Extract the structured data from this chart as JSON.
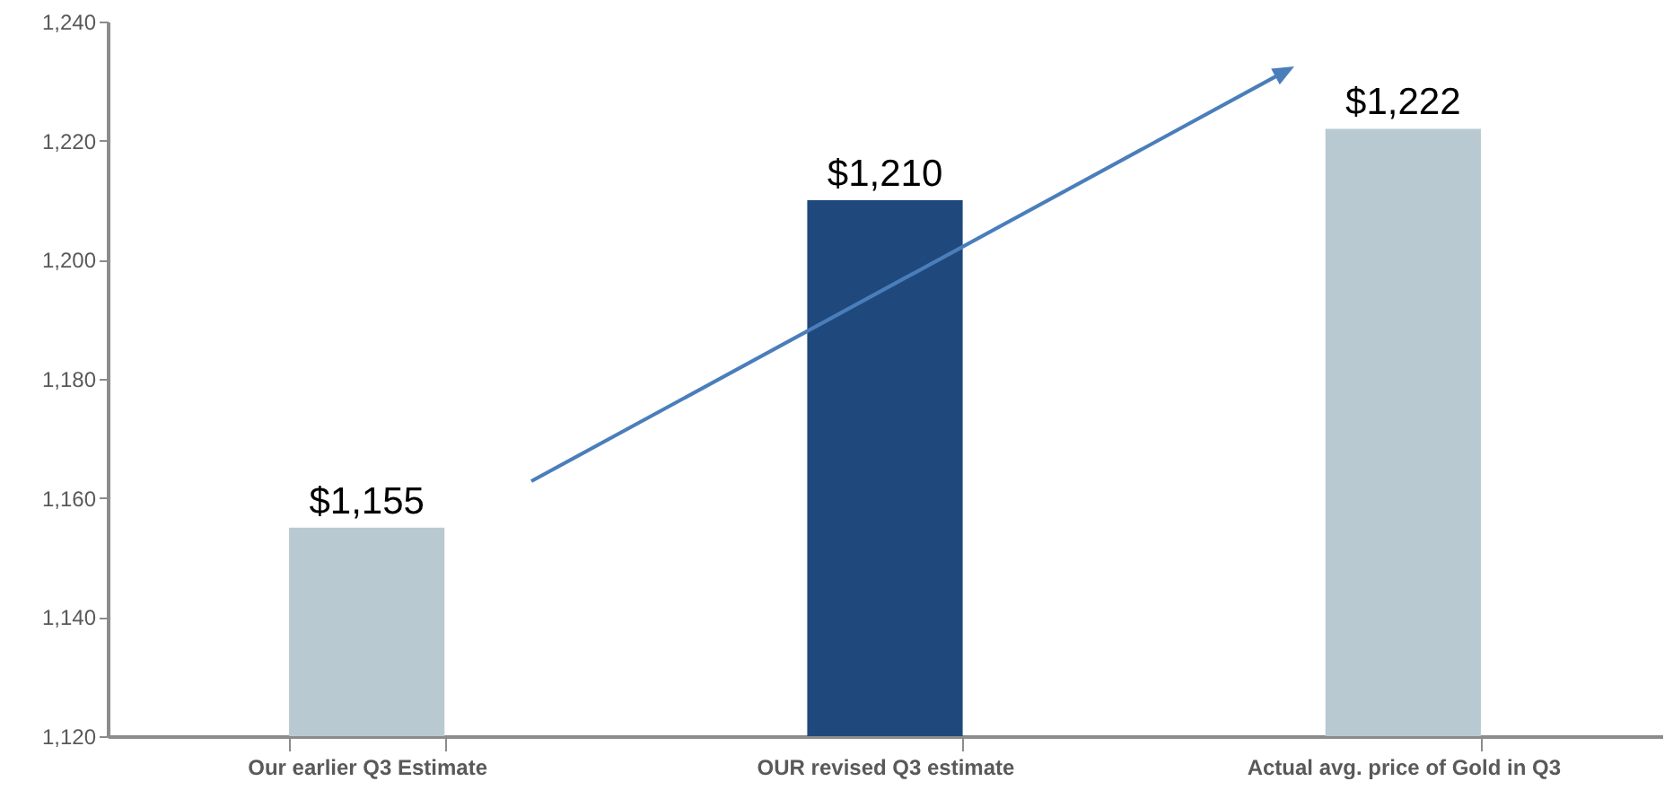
{
  "chart_data": {
    "type": "bar",
    "categories": [
      "Our earlier  Q3  Estimate",
      "OUR revised  Q3 estimate",
      "Actual avg. price of Gold in Q3"
    ],
    "values": [
      1155,
      1210,
      1222
    ],
    "colors": [
      "#b8c9d1",
      "#1f497d",
      "#b8c9d1"
    ],
    "value_labels": [
      "$1,155",
      "$1,210",
      "$1,222"
    ],
    "ylim": [
      1120,
      1240
    ],
    "yticks": [
      {
        "value": 1120,
        "label": "1,120"
      },
      {
        "value": 1140,
        "label": "1,140"
      },
      {
        "value": 1160,
        "label": "1,160"
      },
      {
        "value": 1180,
        "label": "1,180"
      },
      {
        "value": 1200,
        "label": "1,200"
      },
      {
        "value": 1220,
        "label": "1,220"
      },
      {
        "value": 1240,
        "label": "1,240"
      }
    ],
    "grid": false
  }
}
